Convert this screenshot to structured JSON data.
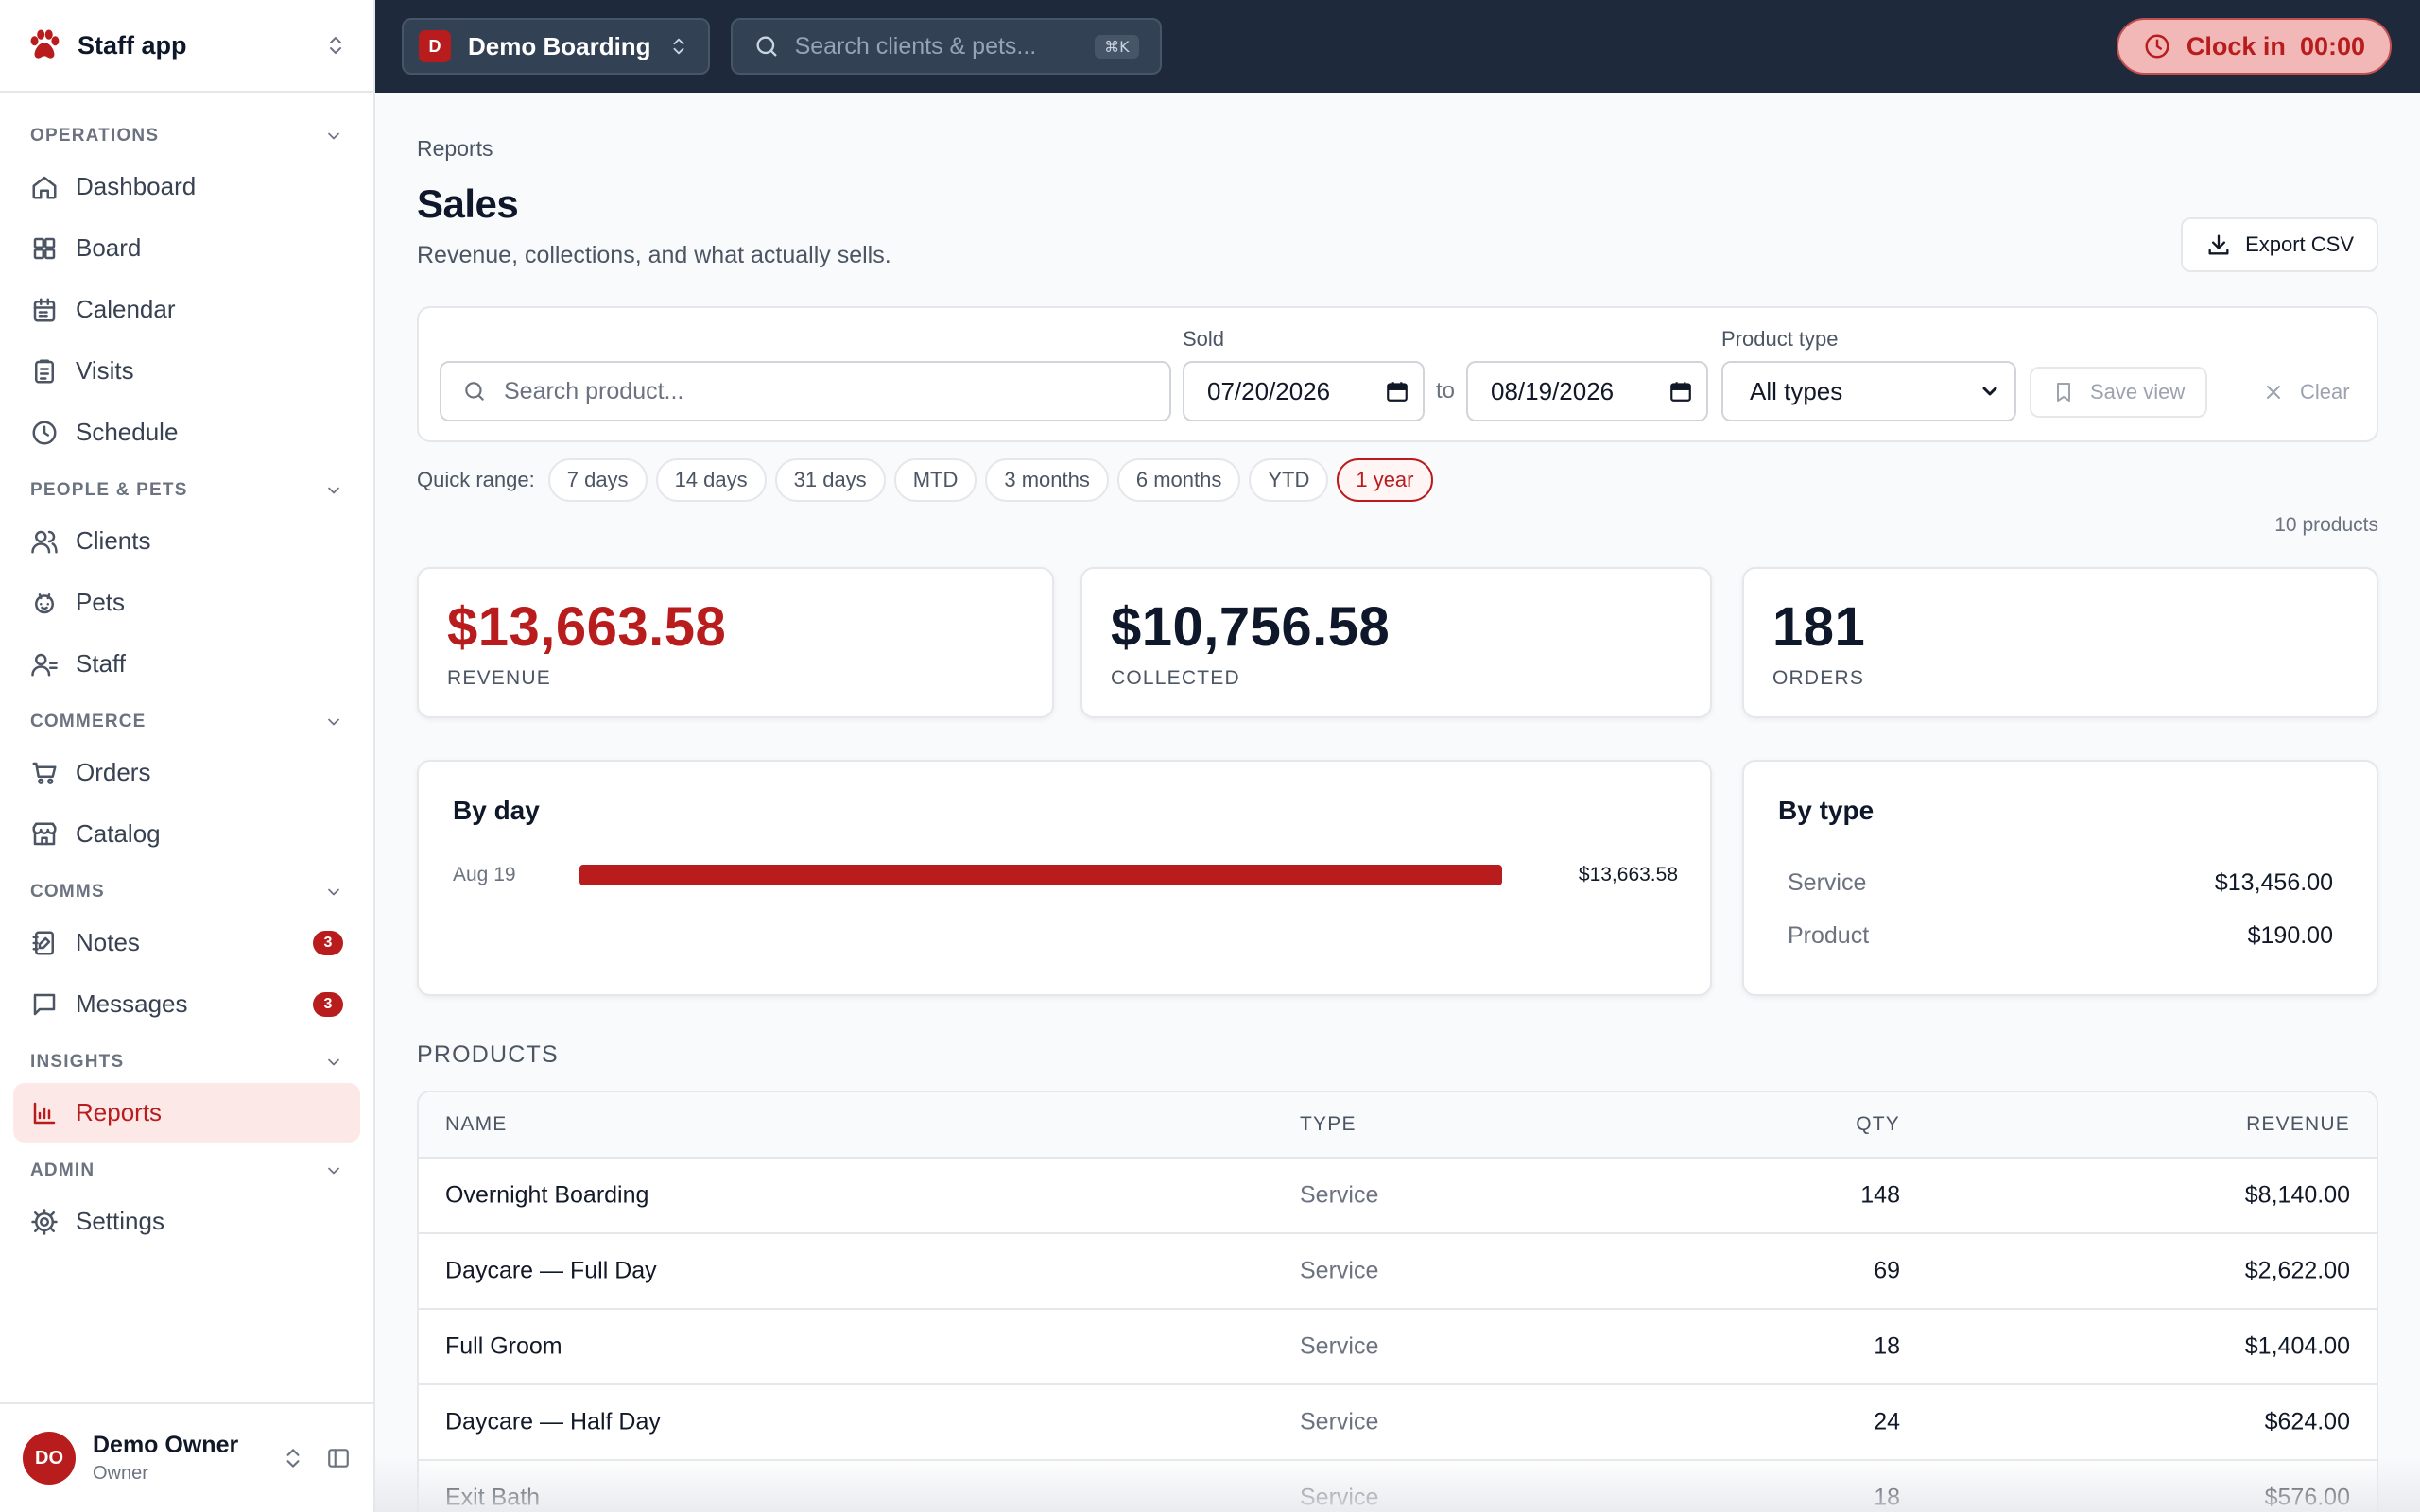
{
  "app": {
    "name": "Staff app"
  },
  "sidebar": {
    "sections": [
      {
        "title": "OPERATIONS",
        "items": [
          {
            "label": "Dashboard",
            "icon": "home-icon"
          },
          {
            "label": "Board",
            "icon": "grid-icon"
          },
          {
            "label": "Calendar",
            "icon": "calendar-icon"
          },
          {
            "label": "Visits",
            "icon": "clipboard-icon"
          },
          {
            "label": "Schedule",
            "icon": "clock-icon"
          }
        ]
      },
      {
        "title": "PEOPLE & PETS",
        "items": [
          {
            "label": "Clients",
            "icon": "users-icon"
          },
          {
            "label": "Pets",
            "icon": "paw-icon"
          },
          {
            "label": "Staff",
            "icon": "staff-icon"
          }
        ]
      },
      {
        "title": "COMMERCE",
        "items": [
          {
            "label": "Orders",
            "icon": "cart-icon"
          },
          {
            "label": "Catalog",
            "icon": "store-icon"
          }
        ]
      },
      {
        "title": "COMMS",
        "items": [
          {
            "label": "Notes",
            "icon": "notebook-icon",
            "badge": "3"
          },
          {
            "label": "Messages",
            "icon": "message-icon",
            "badge": "3"
          }
        ]
      },
      {
        "title": "INSIGHTS",
        "items": [
          {
            "label": "Reports",
            "icon": "bar-chart-icon",
            "active": true
          }
        ]
      },
      {
        "title": "ADMIN",
        "items": [
          {
            "label": "Settings",
            "icon": "gear-icon"
          }
        ]
      }
    ],
    "user": {
      "initials": "DO",
      "name": "Demo Owner",
      "role": "Owner"
    }
  },
  "topbar": {
    "location_initial": "D",
    "location": "Demo Boarding",
    "search_placeholder": "Search clients & pets...",
    "search_shortcut": "⌘K",
    "clock_label": "Clock in",
    "clock_time": "00:00"
  },
  "page": {
    "breadcrumb": "Reports",
    "title": "Sales",
    "subtitle": "Revenue, collections, and what actually sells.",
    "export_label": "Export CSV"
  },
  "filters": {
    "search_placeholder": "Search product...",
    "sold_label": "Sold",
    "date_from": "07/20/2026",
    "to_label": "to",
    "date_to": "08/19/2026",
    "type_label": "Product type",
    "type_value": "All types",
    "save_view": "Save view",
    "clear": "Clear"
  },
  "quick_range": {
    "label": "Quick range:",
    "options": [
      "7 days",
      "14 days",
      "31 days",
      "MTD",
      "3 months",
      "6 months",
      "YTD",
      "1 year"
    ],
    "selected": "1 year"
  },
  "product_count": "10 products",
  "kpis": [
    {
      "value": "$13,663.58",
      "label": "REVENUE"
    },
    {
      "value": "$10,756.58",
      "label": "COLLECTED"
    },
    {
      "value": "181",
      "label": "ORDERS"
    }
  ],
  "by_day": {
    "title": "By day",
    "rows": [
      {
        "date": "Aug 19",
        "amount": "$13,663.58",
        "fraction": 1.0
      }
    ]
  },
  "by_type": {
    "title": "By type",
    "rows": [
      {
        "name": "Service",
        "amount": "$13,456.00"
      },
      {
        "name": "Product",
        "amount": "$190.00"
      }
    ]
  },
  "products": {
    "heading": "PRODUCTS",
    "columns": [
      "NAME",
      "TYPE",
      "QTY",
      "REVENUE"
    ],
    "rows": [
      {
        "name": "Overnight Boarding",
        "type": "Service",
        "qty": "148",
        "revenue": "$8,140.00"
      },
      {
        "name": "Daycare — Full Day",
        "type": "Service",
        "qty": "69",
        "revenue": "$2,622.00"
      },
      {
        "name": "Full Groom",
        "type": "Service",
        "qty": "18",
        "revenue": "$1,404.00"
      },
      {
        "name": "Daycare — Half Day",
        "type": "Service",
        "qty": "24",
        "revenue": "$624.00"
      },
      {
        "name": "Exit Bath",
        "type": "Service",
        "qty": "18",
        "revenue": "$576.00"
      }
    ]
  },
  "colors": {
    "accent": "#b91c1c",
    "topbar": "#1e293b",
    "active_bg": "#fde8e8"
  }
}
